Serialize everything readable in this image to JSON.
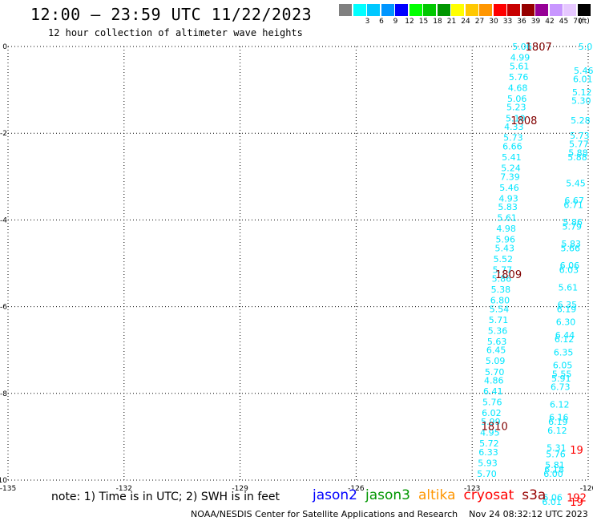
{
  "header": {
    "title": "12:00 – 23:59 UTC 11/22/2023",
    "subtitle": "12 hour collection of altimeter wave heights"
  },
  "colorbar": {
    "unit": "(ft)",
    "bins": [
      {
        "label": "",
        "color": "#808080"
      },
      {
        "label": "3",
        "color": "#00ffff"
      },
      {
        "label": "6",
        "color": "#00c8ff"
      },
      {
        "label": "9",
        "color": "#0096ff"
      },
      {
        "label": "12",
        "color": "#0000ff"
      },
      {
        "label": "15",
        "color": "#00ff00"
      },
      {
        "label": "18",
        "color": "#00c800"
      },
      {
        "label": "21",
        "color": "#009600"
      },
      {
        "label": "24",
        "color": "#ffff00"
      },
      {
        "label": "27",
        "color": "#ffc800"
      },
      {
        "label": "30",
        "color": "#ff9600"
      },
      {
        "label": "33",
        "color": "#ff0000"
      },
      {
        "label": "36",
        "color": "#c80000"
      },
      {
        "label": "39",
        "color": "#960000"
      },
      {
        "label": "42",
        "color": "#960096"
      },
      {
        "label": "45",
        "color": "#c896ff"
      },
      {
        "label": "70",
        "color": "#e6c8ff"
      },
      {
        "label": "",
        "color": "#000000"
      }
    ]
  },
  "chart_data": {
    "type": "scatter",
    "title": "12:00 – 23:59 UTC 11/22/2023",
    "subtitle": "12 hour collection of altimeter wave heights",
    "xlim": [
      -135,
      -120
    ],
    "ylim": [
      -10,
      0
    ],
    "x_ticks": [
      "-135",
      "-132",
      "-129",
      "-126",
      "-123",
      "-120"
    ],
    "y_ticks": [
      "0",
      "-2",
      "-4",
      "-6",
      "-8",
      "-10"
    ],
    "grid": true,
    "value_unit": "ft",
    "track_color": "#00e6ff",
    "time_color": "#800000",
    "series": [
      {
        "points": [
          {
            "x": -121.71,
            "y": 0.0,
            "v": "5.06"
          },
          {
            "x": -121.76,
            "y": -0.25,
            "v": "4.99"
          },
          {
            "x": -121.78,
            "y": -0.45,
            "v": "5.61"
          },
          {
            "x": -121.8,
            "y": -0.7,
            "v": "5.76"
          },
          {
            "x": -121.82,
            "y": -0.95,
            "v": "4.68"
          },
          {
            "x": -121.84,
            "y": -1.2,
            "v": "5.06"
          },
          {
            "x": -121.86,
            "y": -1.4,
            "v": "5.23"
          },
          {
            "x": -121.88,
            "y": -1.65,
            "v": "5.10"
          },
          {
            "x": -121.92,
            "y": -1.85,
            "v": "4.33"
          },
          {
            "x": -121.94,
            "y": -2.1,
            "v": "5.73"
          },
          {
            "x": -121.96,
            "y": -2.3,
            "v": "6.66"
          },
          {
            "x": -121.98,
            "y": -2.55,
            "v": "5.41"
          },
          {
            "x": -122.0,
            "y": -2.8,
            "v": "5.24"
          },
          {
            "x": -122.02,
            "y": -3.0,
            "v": "7.39"
          },
          {
            "x": -122.04,
            "y": -3.25,
            "v": "5.46"
          },
          {
            "x": -122.06,
            "y": -3.5,
            "v": "4.93"
          },
          {
            "x": -122.08,
            "y": -3.7,
            "v": "5.83"
          },
          {
            "x": -122.1,
            "y": -3.95,
            "v": "5.61"
          },
          {
            "x": -122.12,
            "y": -4.2,
            "v": "4.98"
          },
          {
            "x": -122.14,
            "y": -4.45,
            "v": "5.96"
          },
          {
            "x": -122.16,
            "y": -4.65,
            "v": "5.43"
          },
          {
            "x": -122.2,
            "y": -4.9,
            "v": "5.52"
          },
          {
            "x": -122.22,
            "y": -5.15,
            "v": "5.77"
          },
          {
            "x": -122.24,
            "y": -5.35,
            "v": "5.86"
          },
          {
            "x": -122.26,
            "y": -5.6,
            "v": "5.38"
          },
          {
            "x": -122.28,
            "y": -5.85,
            "v": "6.80"
          },
          {
            "x": -122.3,
            "y": -6.05,
            "v": "5.54"
          },
          {
            "x": -122.32,
            "y": -6.3,
            "v": "5.71"
          },
          {
            "x": -122.34,
            "y": -6.55,
            "v": "5.36"
          },
          {
            "x": -122.36,
            "y": -6.8,
            "v": "5.63"
          },
          {
            "x": -122.38,
            "y": -7.0,
            "v": "6.45"
          },
          {
            "x": -122.4,
            "y": -7.25,
            "v": "5.09"
          },
          {
            "x": -122.42,
            "y": -7.5,
            "v": "5.70"
          },
          {
            "x": -122.44,
            "y": -7.7,
            "v": "4.86"
          },
          {
            "x": -122.46,
            "y": -7.95,
            "v": "6.41"
          },
          {
            "x": -122.48,
            "y": -8.2,
            "v": "5.76"
          },
          {
            "x": -122.5,
            "y": -8.45,
            "v": "6.02"
          },
          {
            "x": -122.52,
            "y": -8.65,
            "v": "5.99"
          },
          {
            "x": -122.54,
            "y": -8.9,
            "v": "4.95"
          },
          {
            "x": -122.56,
            "y": -9.15,
            "v": "5.72"
          },
          {
            "x": -122.58,
            "y": -9.35,
            "v": "6.33"
          },
          {
            "x": -122.6,
            "y": -9.6,
            "v": "5.93"
          },
          {
            "x": -122.62,
            "y": -9.85,
            "v": "5.70"
          }
        ]
      },
      {
        "points": [
          {
            "x": -120.0,
            "y": 0.0,
            "v": "5.06"
          },
          {
            "x": -120.12,
            "y": -0.55,
            "v": "5.46"
          },
          {
            "x": -120.14,
            "y": -0.75,
            "v": "6.01"
          },
          {
            "x": -120.16,
            "y": -1.05,
            "v": "5.12"
          },
          {
            "x": -120.18,
            "y": -1.25,
            "v": "5.30"
          },
          {
            "x": -120.2,
            "y": -1.7,
            "v": "5.28"
          },
          {
            "x": -120.22,
            "y": -2.05,
            "v": "5.73"
          },
          {
            "x": -120.24,
            "y": -2.25,
            "v": "5.77"
          },
          {
            "x": -120.26,
            "y": -2.45,
            "v": "5.88"
          },
          {
            "x": -120.28,
            "y": -2.55,
            "v": "5.88"
          },
          {
            "x": -120.32,
            "y": -3.15,
            "v": "5.45"
          },
          {
            "x": -120.36,
            "y": -3.55,
            "v": "6.67"
          },
          {
            "x": -120.38,
            "y": -3.65,
            "v": "6.71"
          },
          {
            "x": -120.4,
            "y": -4.05,
            "v": "5.86"
          },
          {
            "x": -120.42,
            "y": -4.15,
            "v": "5.79"
          },
          {
            "x": -120.44,
            "y": -4.55,
            "v": "5.83"
          },
          {
            "x": -120.46,
            "y": -4.65,
            "v": "5.66"
          },
          {
            "x": -120.48,
            "y": -5.05,
            "v": "6.06"
          },
          {
            "x": -120.5,
            "y": -5.15,
            "v": "6.03"
          },
          {
            "x": -120.52,
            "y": -5.55,
            "v": "5.61"
          },
          {
            "x": -120.54,
            "y": -5.95,
            "v": "6.35"
          },
          {
            "x": -120.56,
            "y": -6.05,
            "v": "6.19"
          },
          {
            "x": -120.58,
            "y": -6.35,
            "v": "6.30"
          },
          {
            "x": -120.6,
            "y": -6.65,
            "v": "6.44"
          },
          {
            "x": -120.62,
            "y": -6.75,
            "v": "6.12"
          },
          {
            "x": -120.64,
            "y": -7.05,
            "v": "6.35"
          },
          {
            "x": -120.66,
            "y": -7.35,
            "v": "6.05"
          },
          {
            "x": -120.68,
            "y": -7.55,
            "v": "5.55"
          },
          {
            "x": -120.7,
            "y": -7.65,
            "v": "5.91"
          },
          {
            "x": -120.72,
            "y": -7.85,
            "v": "6.73"
          },
          {
            "x": -120.74,
            "y": -8.25,
            "v": "6.12"
          },
          {
            "x": -120.76,
            "y": -8.55,
            "v": "6.16"
          },
          {
            "x": -120.78,
            "y": -8.65,
            "v": "6.19"
          },
          {
            "x": -120.8,
            "y": -8.85,
            "v": "6.12"
          },
          {
            "x": -120.82,
            "y": -9.25,
            "v": "5.31"
          },
          {
            "x": -120.84,
            "y": -9.4,
            "v": "5.76"
          },
          {
            "x": -120.86,
            "y": -9.65,
            "v": "5.81"
          },
          {
            "x": -120.88,
            "y": -9.75,
            "v": "6.18"
          },
          {
            "x": -120.9,
            "y": -9.85,
            "v": "6.00"
          },
          {
            "x": -120.92,
            "y": -10.4,
            "v": "6.06"
          },
          {
            "x": -120.94,
            "y": -10.5,
            "v": "6.01"
          }
        ]
      }
    ],
    "time_labels": [
      {
        "x": -121.28,
        "y": 0.0,
        "text": "1807",
        "color": "#800000"
      },
      {
        "x": -121.66,
        "y": -1.7,
        "text": "1808",
        "color": "#800000"
      },
      {
        "x": -122.06,
        "y": -5.25,
        "text": "1809",
        "color": "#800000"
      },
      {
        "x": -122.42,
        "y": -8.75,
        "text": "1810",
        "color": "#800000"
      },
      {
        "x": -120.3,
        "y": -9.3,
        "text": "19",
        "color": "#ff0000"
      },
      {
        "x": -120.3,
        "y": -10.4,
        "text": "192",
        "color": "#ff0000"
      },
      {
        "x": -120.3,
        "y": -10.5,
        "text": "19",
        "color": "#ff0000"
      }
    ]
  },
  "note": "note:  1) Time is in UTC; 2) SWH is in feet",
  "satellite_legend": [
    {
      "label": "jason2",
      "color": "#0000ff"
    },
    {
      "label": "jason3",
      "color": "#009600"
    },
    {
      "label": "altika",
      "color": "#ff9600"
    },
    {
      "label": "cryosat",
      "color": "#ff0000"
    },
    {
      "label": "s3a",
      "color": "#960000"
    }
  ],
  "footer": {
    "org": "NOAA/NESDIS Center for Satellite Applications and Research",
    "timestamp": "Nov 24 08:32:12 UTC 2023"
  }
}
